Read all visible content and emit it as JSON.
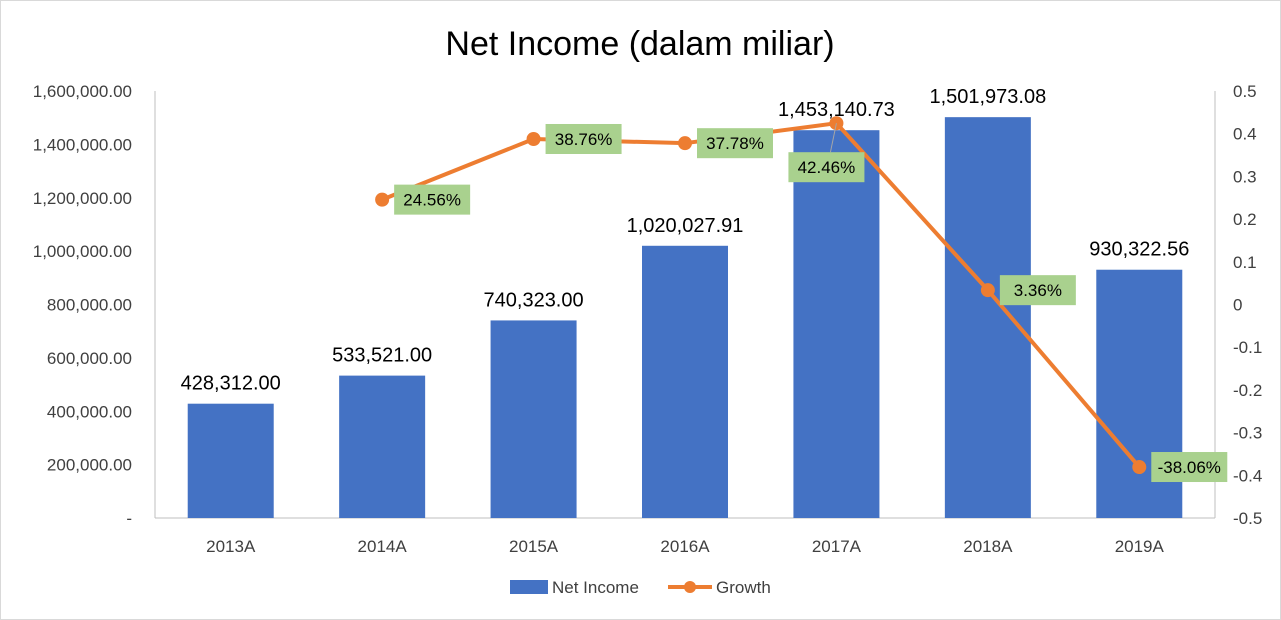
{
  "chart_data": {
    "type": "bar",
    "title": "Net Income (dalam miliar)",
    "categories": [
      "2013A",
      "2014A",
      "2015A",
      "2016A",
      "2017A",
      "2018A",
      "2019A"
    ],
    "series": [
      {
        "name": "Net Income",
        "type": "bar",
        "axis": "left",
        "values": [
          428312.0,
          533521.0,
          740323.0,
          1020027.91,
          1453140.73,
          1501973.08,
          930322.56
        ],
        "labels": [
          "428,312.00",
          "533,521.00",
          "740,323.00",
          "1,020,027.91",
          "1,453,140.73",
          "1,501,973.08",
          "930,322.56"
        ]
      },
      {
        "name": "Growth",
        "type": "line",
        "axis": "right",
        "values": [
          null,
          0.2456,
          0.3876,
          0.3778,
          0.4246,
          0.0336,
          -0.3806
        ],
        "labels": [
          "",
          "24.56%",
          "38.76%",
          "37.78%",
          "42.46%",
          "3.36%",
          "-38.06%"
        ]
      }
    ],
    "y_left": {
      "min": 0,
      "max": 1600000,
      "ticks": [
        0,
        200000,
        400000,
        600000,
        800000,
        1000000,
        1200000,
        1400000,
        1600000
      ],
      "tick_labels": [
        "-",
        "200,000.00",
        "400,000.00",
        "600,000.00",
        "800,000.00",
        "1,000,000.00",
        "1,200,000.00",
        "1,400,000.00",
        "1,600,000.00"
      ]
    },
    "y_right": {
      "min": -0.5,
      "max": 0.5,
      "ticks": [
        -0.5,
        -0.4,
        -0.3,
        -0.2,
        -0.1,
        0,
        0.1,
        0.2,
        0.3,
        0.4,
        0.5
      ],
      "tick_labels": [
        "-0.5",
        "-0.4",
        "-0.3",
        "-0.2",
        "-0.1",
        "0",
        "0.1",
        "0.2",
        "0.3",
        "0.4",
        "0.5"
      ]
    },
    "grid": false,
    "legend": "bottom",
    "colors": {
      "bar": "#4472C4",
      "line": "#ED7D31",
      "label_box": "#A9D18E",
      "axis": "#BFBFBF"
    }
  }
}
